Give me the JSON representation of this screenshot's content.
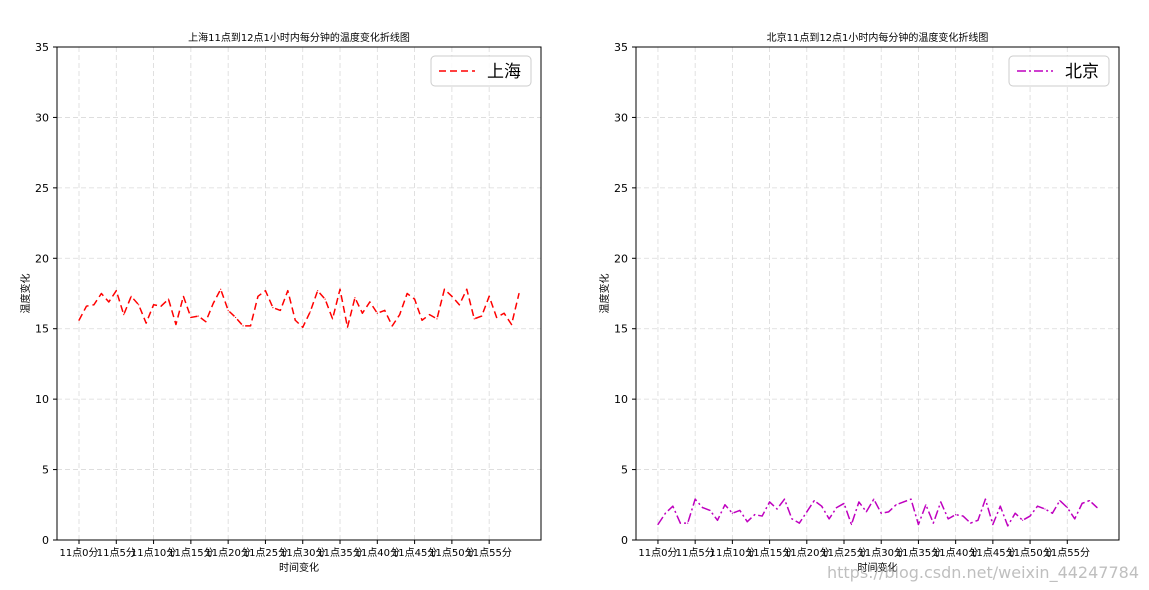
{
  "watermark": "https://blog.csdn.net/weixin_44247784",
  "chart_data": [
    {
      "type": "line",
      "title": "上海11点到12点1小时内每分钟的温度变化折线图",
      "xlabel": "时间变化",
      "ylabel": "温度变化",
      "ylim": [
        0,
        35
      ],
      "yticks": [
        0,
        5,
        10,
        15,
        20,
        25,
        30,
        35
      ],
      "xticks": [
        0,
        5,
        10,
        15,
        20,
        25,
        30,
        35,
        40,
        45,
        50,
        55
      ],
      "xtick_labels": [
        "11点0分",
        "11点5分",
        "11点10分",
        "11点15分",
        "11点20分",
        "11点25分",
        "11点30分",
        "11点35分",
        "11点40分",
        "11点45分",
        "11点50分",
        "11点55分"
      ],
      "grid": true,
      "legend_position": "upper right",
      "x": [
        0,
        1,
        2,
        3,
        4,
        5,
        6,
        7,
        8,
        9,
        10,
        11,
        12,
        13,
        14,
        15,
        16,
        17,
        18,
        19,
        20,
        21,
        22,
        23,
        24,
        25,
        26,
        27,
        28,
        29,
        30,
        31,
        32,
        33,
        34,
        35,
        36,
        37,
        38,
        39,
        40,
        41,
        42,
        43,
        44,
        45,
        46,
        47,
        48,
        49,
        50,
        51,
        52,
        53,
        54,
        55,
        56,
        57,
        58,
        59
      ],
      "series": [
        {
          "name": "上海",
          "color": "#ff0000",
          "linestyle": "dashed",
          "values": [
            15.6,
            16.6,
            16.7,
            17.5,
            16.9,
            17.7,
            16.0,
            17.3,
            16.7,
            15.4,
            16.7,
            16.6,
            17.1,
            15.3,
            17.3,
            15.8,
            15.9,
            15.5,
            16.8,
            17.8,
            16.3,
            15.8,
            15.2,
            15.2,
            17.3,
            17.7,
            16.5,
            16.3,
            17.7,
            15.6,
            15.1,
            16.2,
            17.7,
            17.1,
            15.7,
            17.8,
            15.1,
            17.2,
            16.1,
            16.9,
            16.1,
            16.3,
            15.2,
            16.0,
            17.5,
            17.1,
            15.6,
            16.0,
            15.7,
            17.8,
            17.3,
            16.7,
            17.8,
            15.7,
            15.9,
            17.3,
            15.8,
            16.1,
            15.3,
            17.5
          ]
        }
      ]
    },
    {
      "type": "line",
      "title": "北京11点到12点1小时内每分钟的温度变化折线图",
      "xlabel": "时间变化",
      "ylabel": "温度变化",
      "ylim": [
        0,
        35
      ],
      "yticks": [
        0,
        5,
        10,
        15,
        20,
        25,
        30,
        35
      ],
      "xticks": [
        0,
        5,
        10,
        15,
        20,
        25,
        30,
        35,
        40,
        45,
        50,
        55
      ],
      "xtick_labels": [
        "11点0分",
        "11点5分",
        "11点10分",
        "11点15分",
        "11点20分",
        "11点25分",
        "11点30分",
        "11点35分",
        "11点40分",
        "11点45分",
        "11点50分",
        "11点55分"
      ],
      "grid": true,
      "legend_position": "upper right",
      "x": [
        0,
        1,
        2,
        3,
        4,
        5,
        6,
        7,
        8,
        9,
        10,
        11,
        12,
        13,
        14,
        15,
        16,
        17,
        18,
        19,
        20,
        21,
        22,
        23,
        24,
        25,
        26,
        27,
        28,
        29,
        30,
        31,
        32,
        33,
        34,
        35,
        36,
        37,
        38,
        39,
        40,
        41,
        42,
        43,
        44,
        45,
        46,
        47,
        48,
        49,
        50,
        51,
        52,
        53,
        54,
        55,
        56,
        57,
        58,
        59
      ],
      "series": [
        {
          "name": "北京",
          "color": "#bf00bf",
          "linestyle": "dashdot",
          "values": [
            1.1,
            1.9,
            2.4,
            1.2,
            1.2,
            2.9,
            2.3,
            2.1,
            1.4,
            2.5,
            1.9,
            2.1,
            1.3,
            1.8,
            1.7,
            2.7,
            2.2,
            2.9,
            1.5,
            1.2,
            2.0,
            2.8,
            2.4,
            1.5,
            2.3,
            2.6,
            1.1,
            2.7,
            2.0,
            2.9,
            1.9,
            2.0,
            2.5,
            2.7,
            2.9,
            1.1,
            2.5,
            1.2,
            2.7,
            1.5,
            1.8,
            1.7,
            1.2,
            1.4,
            2.9,
            1.1,
            2.4,
            1.0,
            1.9,
            1.4,
            1.7,
            2.4,
            2.2,
            1.9,
            2.8,
            2.3,
            1.5,
            2.6,
            2.8,
            2.3
          ]
        }
      ]
    }
  ]
}
